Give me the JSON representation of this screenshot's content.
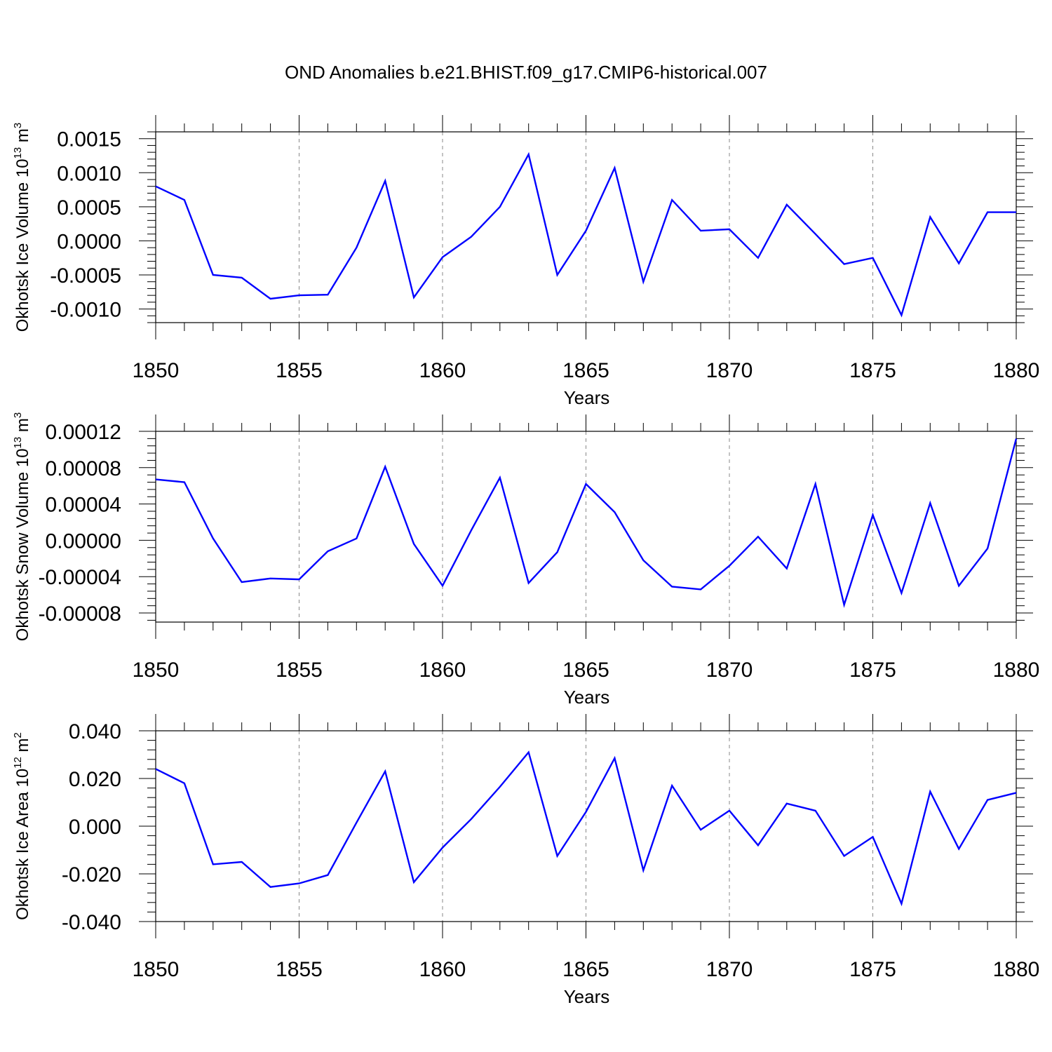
{
  "title": "OND Anomalies b.e21.BHIST.f09_g17.CMIP6-historical.007",
  "colors": {
    "line": "#0000ff",
    "axes": "#000000",
    "grid": "#888888",
    "background": "#ffffff"
  },
  "chart_data": [
    {
      "type": "line",
      "title": "OND Anomalies b.e21.BHIST.f09_g17.CMIP6-historical.007",
      "xlabel": "Years",
      "ylabel": "Okhotsk Ice Volume 10",
      "ylabel_unit_base": "m",
      "ylabel_exp": "13",
      "ylabel_unit_exp": "3",
      "xlim": [
        1850,
        1880
      ],
      "ylim": [
        -0.0012,
        0.0016
      ],
      "xticks": [
        1850,
        1855,
        1860,
        1865,
        1870,
        1875,
        1880
      ],
      "xtick_labels": [
        "1850",
        "1855",
        "1860",
        "1865",
        "1870",
        "1875",
        "1880"
      ],
      "yticks": [
        -0.001,
        -0.0005,
        0.0,
        0.0005,
        0.001,
        0.0015
      ],
      "ytick_labels": [
        "-0.0010",
        "-0.0005",
        "0.0000",
        "0.0005",
        "0.0010",
        "0.0015"
      ],
      "ygrid": false,
      "xgrid": "dashed at major ticks",
      "x": [
        1850,
        1851,
        1852,
        1853,
        1854,
        1855,
        1856,
        1857,
        1858,
        1859,
        1860,
        1861,
        1862,
        1863,
        1864,
        1865,
        1866,
        1867,
        1868,
        1869,
        1870,
        1871,
        1872,
        1873,
        1874,
        1875,
        1876,
        1877,
        1878,
        1879,
        1880
      ],
      "values": [
        0.0008,
        0.0006,
        -0.0005,
        -0.00054,
        -0.00085,
        -0.0008,
        -0.00079,
        -0.0001,
        0.00088,
        -0.00083,
        -0.00024,
        6e-05,
        0.0005,
        0.00127,
        -0.0005,
        0.00015,
        0.00107,
        -0.0006,
        0.0006,
        0.00015,
        0.00017,
        -0.00025,
        0.00053,
        0.0001,
        -0.00034,
        -0.00025,
        -0.00109,
        0.00035,
        -0.00033,
        0.00042,
        0.00042
      ]
    },
    {
      "type": "line",
      "xlabel": "Years",
      "ylabel": "Okhotsk Snow Volume 10",
      "ylabel_unit_base": "m",
      "ylabel_exp": "13",
      "ylabel_unit_exp": "3",
      "xlim": [
        1850,
        1880
      ],
      "ylim": [
        -9e-05,
        0.00012
      ],
      "xticks": [
        1850,
        1855,
        1860,
        1865,
        1870,
        1875,
        1880
      ],
      "xtick_labels": [
        "1850",
        "1855",
        "1860",
        "1865",
        "1870",
        "1875",
        "1880"
      ],
      "yticks": [
        -8e-05,
        -4e-05,
        0.0,
        4e-05,
        8e-05,
        0.00012
      ],
      "ytick_labels": [
        "-0.00008",
        "-0.00004",
        "0.00000",
        "0.00004",
        "0.00008",
        "0.00012"
      ],
      "ygrid": false,
      "xgrid": "dashed at major ticks",
      "x": [
        1850,
        1851,
        1852,
        1853,
        1854,
        1855,
        1856,
        1857,
        1858,
        1859,
        1860,
        1861,
        1862,
        1863,
        1864,
        1865,
        1866,
        1867,
        1868,
        1869,
        1870,
        1871,
        1872,
        1873,
        1874,
        1875,
        1876,
        1877,
        1878,
        1879,
        1880
      ],
      "values": [
        6.7e-05,
        6.4e-05,
        2e-06,
        -4.6e-05,
        -4.2e-05,
        -4.3e-05,
        -1.2e-05,
        2e-06,
        8.1e-05,
        -4e-06,
        -5e-05,
        1.1e-05,
        6.9e-05,
        -4.7e-05,
        -1.3e-05,
        6.2e-05,
        3.1e-05,
        -2.2e-05,
        -5.1e-05,
        -5.4e-05,
        -2.8e-05,
        4e-06,
        -3.1e-05,
        6.2e-05,
        -7.1e-05,
        2.8e-05,
        -5.8e-05,
        4.1e-05,
        -5e-05,
        -9e-06,
        0.000112
      ]
    },
    {
      "type": "line",
      "xlabel": "Years",
      "ylabel": "Okhotsk Ice Area 10",
      "ylabel_unit_base": "m",
      "ylabel_exp": "12",
      "ylabel_unit_exp": "2",
      "xlim": [
        1850,
        1880
      ],
      "ylim": [
        -0.04,
        0.04
      ],
      "xticks": [
        1850,
        1855,
        1860,
        1865,
        1870,
        1875,
        1880
      ],
      "xtick_labels": [
        "1850",
        "1855",
        "1860",
        "1865",
        "1870",
        "1875",
        "1880"
      ],
      "yticks": [
        -0.04,
        -0.02,
        0.0,
        0.02,
        0.04
      ],
      "ytick_labels": [
        "-0.040",
        "-0.020",
        "0.000",
        "0.020",
        "0.040"
      ],
      "ygrid": false,
      "xgrid": "dashed at major ticks",
      "x": [
        1850,
        1851,
        1852,
        1853,
        1854,
        1855,
        1856,
        1857,
        1858,
        1859,
        1860,
        1861,
        1862,
        1863,
        1864,
        1865,
        1866,
        1867,
        1868,
        1869,
        1870,
        1871,
        1872,
        1873,
        1874,
        1875,
        1876,
        1877,
        1878,
        1879,
        1880
      ],
      "values": [
        0.024,
        0.018,
        -0.016,
        -0.015,
        -0.0255,
        -0.024,
        -0.0205,
        0.0015,
        0.023,
        -0.0235,
        -0.009,
        0.003,
        0.0165,
        0.031,
        -0.0125,
        0.006,
        0.0285,
        -0.0185,
        0.017,
        -0.0015,
        0.0065,
        -0.008,
        0.0095,
        0.0065,
        -0.0125,
        -0.0045,
        -0.0325,
        0.0145,
        -0.0095,
        0.011,
        0.014
      ]
    }
  ]
}
